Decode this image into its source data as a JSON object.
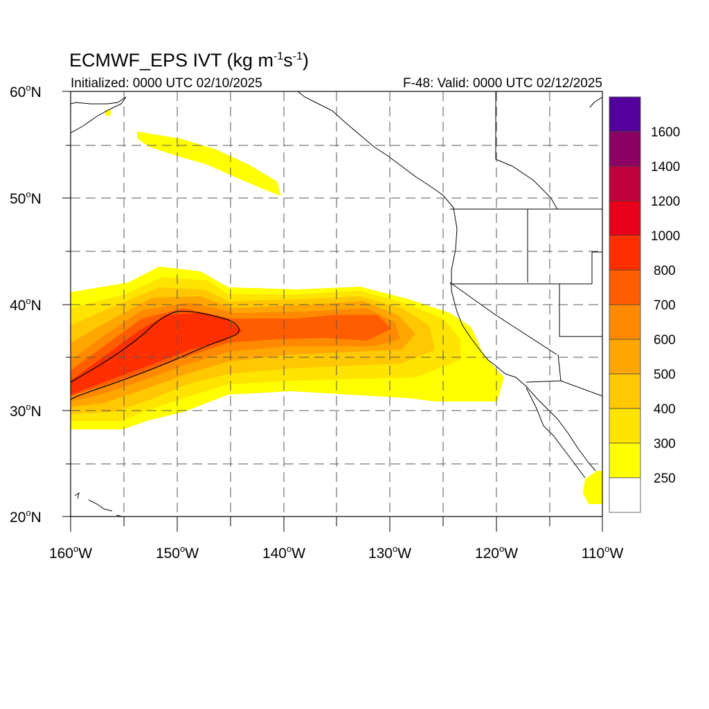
{
  "map": {
    "title_main": "ECMWF_EPS IVT (kg m",
    "title_sup1": "-1",
    "title_mid": "s",
    "title_sup2": "-1",
    "title_end": ")",
    "initialized": "Initialized: 0000 UTC 02/10/2025",
    "valid": "F-48: Valid: 0000 UTC 02/12/2025",
    "lat_labels": [
      "60",
      "50",
      "40",
      "30",
      "20"
    ],
    "lat_suffix": "N",
    "lon_labels": [
      "160",
      "150",
      "140",
      "130",
      "120",
      "110"
    ],
    "lon_suffix": "W",
    "degree": "o",
    "extent": {
      "lon": [
        -160,
        -110
      ],
      "lat": [
        20,
        60
      ]
    }
  },
  "colorbar": {
    "labels": [
      "1600",
      "1400",
      "1200",
      "1000",
      "800",
      "700",
      "600",
      "500",
      "400",
      "300",
      "250"
    ],
    "colors": [
      "#54009c",
      "#8c0064",
      "#c0003c",
      "#e8001a",
      "#ff2f00",
      "#ff5d00",
      "#ff8a00",
      "#ffa600",
      "#ffc800",
      "#ffe400",
      "#ffff00",
      "#ffffff"
    ]
  }
}
